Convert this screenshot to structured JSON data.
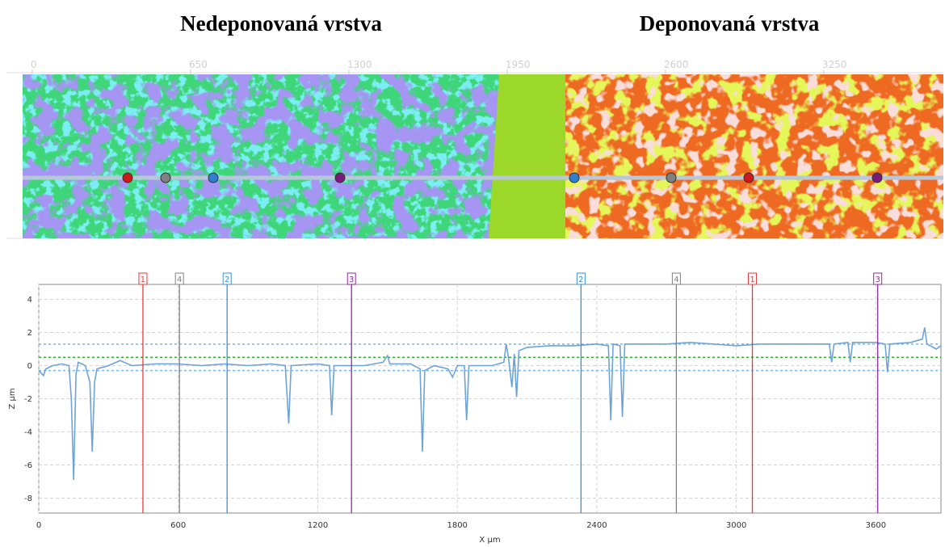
{
  "chart_data": {
    "type": "line",
    "left_title": "Nedeponovaná vrstva",
    "right_title": "Deponovaná vrstva",
    "map_xticks": [
      0,
      650,
      1300,
      1950,
      2600,
      3250
    ],
    "xlabel": "X µm",
    "ylabel": "Z µm",
    "xlim": [
      0,
      3880
    ],
    "ylim": [
      -8.9,
      4.9
    ],
    "xticks": [
      0,
      600,
      1200,
      1800,
      2400,
      3000,
      3600
    ],
    "yticks": [
      4,
      2,
      0,
      -2,
      -4,
      -6,
      -8
    ],
    "grid": true,
    "reference_lines": [
      {
        "value": 1.3,
        "color": "#7fb2e5"
      },
      {
        "value": 0.5,
        "color": "#3aa53a"
      },
      {
        "value": -0.3,
        "color": "#7fb2e5"
      }
    ],
    "markers": [
      {
        "label": "1",
        "x": 448,
        "color": "#e8393b"
      },
      {
        "label": "4",
        "x": 605,
        "color": "#808080"
      },
      {
        "label": "2",
        "x": 810,
        "color": "#3b8fdc"
      },
      {
        "label": "3",
        "x": 1345,
        "color": "#8a2a9e"
      },
      {
        "label": "2",
        "x": 2332,
        "color": "#3b8fdc"
      },
      {
        "label": "4",
        "x": 2742,
        "color": "#808080"
      },
      {
        "label": "1",
        "x": 3069,
        "color": "#e8393b"
      },
      {
        "label": "3",
        "x": 3608,
        "color": "#8a2a9e"
      }
    ],
    "series": [
      {
        "color": "#6ea3d8",
        "x": [
          0,
          20,
          30,
          60,
          100,
          130,
          140,
          150,
          160,
          170,
          200,
          220,
          230,
          240,
          250,
          300,
          350,
          400,
          500,
          600,
          700,
          800,
          900,
          1000,
          1060,
          1075,
          1085,
          1200,
          1250,
          1260,
          1270,
          1400,
          1480,
          1500,
          1510,
          1600,
          1640,
          1650,
          1660,
          1700,
          1760,
          1780,
          1800,
          1830,
          1840,
          1850,
          1950,
          2000,
          2010,
          2020,
          2035,
          2045,
          2055,
          2065,
          2100,
          2200,
          2300,
          2400,
          2450,
          2460,
          2470,
          2500,
          2510,
          2520,
          2600,
          2700,
          2800,
          2900,
          3000,
          3100,
          3200,
          3300,
          3400,
          3410,
          3420,
          3480,
          3490,
          3500,
          3600,
          3640,
          3650,
          3660,
          3750,
          3800,
          3810,
          3820,
          3860,
          3880
        ],
        "values": [
          -0.3,
          -0.6,
          -0.2,
          0,
          0.1,
          0,
          -2,
          -6.9,
          -0.5,
          0.2,
          0,
          -1,
          -5.2,
          -1,
          -0.2,
          0,
          0.3,
          0,
          0.1,
          0.1,
          0,
          0.1,
          0,
          0.1,
          0,
          -3.5,
          0,
          0.1,
          0,
          -3,
          0,
          0,
          0.2,
          0.6,
          0.1,
          0.1,
          -0.2,
          -5.2,
          -0.3,
          0,
          -0.2,
          -0.7,
          0,
          0,
          -3.3,
          0,
          0,
          0.2,
          1.3,
          0.5,
          -1.3,
          0.7,
          -1.9,
          0.9,
          1.1,
          1.2,
          1.2,
          1.3,
          1.2,
          -3.3,
          1.3,
          1.2,
          -3.1,
          1.3,
          1.3,
          1.3,
          1.4,
          1.3,
          1.2,
          1.3,
          1.3,
          1.3,
          1.3,
          0.2,
          1.3,
          1.4,
          0.2,
          1.4,
          1.4,
          1.3,
          -0.4,
          1.3,
          1.4,
          1.6,
          2.3,
          1.3,
          1.0,
          1.2
        ]
      }
    ]
  }
}
